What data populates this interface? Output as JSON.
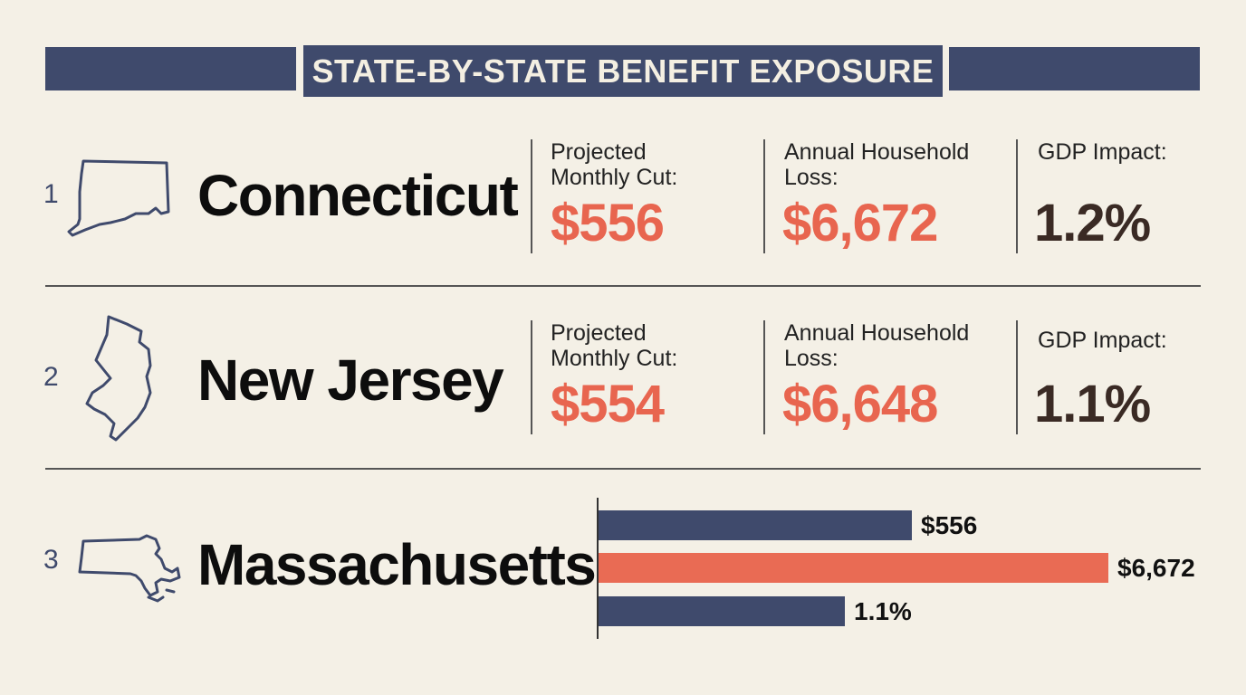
{
  "header": {
    "title": "STATE-BY-STATE BENEFIT EXPOSURE"
  },
  "states": [
    {
      "rank": "1",
      "name": "Connecticut",
      "monthly_cut_label": "Projected Monthly Cut:",
      "monthly_cut_value": "$556",
      "household_loss_label": "Annual Household Loss:",
      "household_loss_value": "$6,672",
      "gdp_label": "GDP Impact:",
      "gdp_value": "1.2%",
      "icon": "connecticut-outline"
    },
    {
      "rank": "2",
      "name": "New Jersey",
      "monthly_cut_label": "Projected Monthly Cut:",
      "monthly_cut_value": "$554",
      "household_loss_label": "Annual Household Loss:",
      "household_loss_value": "$6,648",
      "gdp_label": "GDP Impact:",
      "gdp_value": "1.1%",
      "icon": "new-jersey-outline"
    },
    {
      "rank": "3",
      "name": "Massachusetts",
      "icon": "massachusetts-outline",
      "bars": [
        {
          "label": "$556",
          "color": "#3f4a6c"
        },
        {
          "label": "$6,672",
          "color": "#e96b54"
        },
        {
          "label": "1.1%",
          "color": "#3f4a6c"
        }
      ]
    }
  ],
  "colors": {
    "navy": "#3f4a6c",
    "accent": "#e8654f",
    "background": "#f4f0e6"
  }
}
